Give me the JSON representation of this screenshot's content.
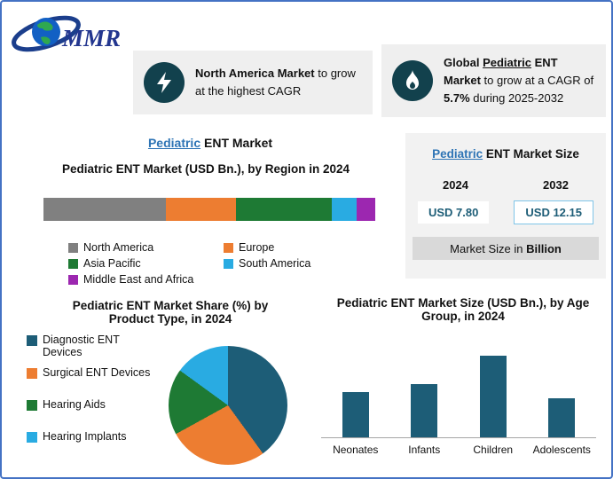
{
  "brand": {
    "logo_text": "MMR"
  },
  "callout_na": {
    "bold": "North America Market",
    "rest": " to grow at the highest CAGR"
  },
  "callout_global": {
    "seg1": "Global ",
    "seg2": "Pediatric",
    "seg3": " ENT Market",
    "seg4": " to grow at a CAGR of ",
    "seg5": "5.7%",
    "seg6": " during 2025-2032"
  },
  "region_section": {
    "title_lead": "Pediatric",
    "title_rest": " ENT Market",
    "subtitle": "Pediatric ENT Market (USD Bn.), by Region in 2024"
  },
  "market_size_panel": {
    "title_lead": "Pediatric",
    "title_rest": " ENT Market Size",
    "year_left": "2024",
    "year_right": "2032",
    "value_left": "USD 7.80",
    "value_right": "USD 12.15",
    "footnote_normal": "Market Size in ",
    "footnote_bold": "Billion"
  },
  "pie_section": {
    "title": "Pediatric ENT Market Share (%) by Product Type, in 2024"
  },
  "age_section": {
    "title": "Pediatric ENT Market Size (USD Bn.), by Age Group, in 2024"
  },
  "colors": {
    "border_blue": "#4472C4",
    "accent_blue": "#2E74B5",
    "teal": "#1D5D77",
    "icon_circle": "#12414D",
    "panel_gray": "#EFEFEF"
  },
  "chart_data": [
    {
      "type": "bar-stacked",
      "title": "Pediatric ENT Market (USD Bn.), by Region in 2024",
      "categories": [
        "North America",
        "Europe",
        "Asia Pacific",
        "South America",
        "Middle East and Africa"
      ],
      "values": [
        37,
        21,
        29,
        7.5,
        5.5
      ],
      "unit": "percent share of bar width (2024, estimated from segment lengths)",
      "colors": [
        "#808080",
        "#ED7D31",
        "#1E7A34",
        "#29ABE2",
        "#9C27B0"
      ],
      "legend_position": "below"
    },
    {
      "type": "pie",
      "title": "Pediatric ENT Market Share (%) by Product Type, in 2024",
      "categories": [
        "Diagnostic ENT Devices",
        "Surgical ENT Devices",
        "Hearing Aids",
        "Hearing Implants"
      ],
      "values": [
        40,
        27,
        18,
        15
      ],
      "unit": "percent (estimated from slice angles)",
      "colors": [
        "#1D5D77",
        "#ED7D31",
        "#1E7A34",
        "#29ABE2"
      ],
      "legend_position": "left"
    },
    {
      "type": "bar",
      "title": "Pediatric ENT Market Size (USD Bn.), by Age Group, in 2024",
      "categories": [
        "Neonates",
        "Infants",
        "Children",
        "Adolescents"
      ],
      "values": [
        1.6,
        1.9,
        2.9,
        1.4
      ],
      "ylabel": "USD Bn.",
      "unit": "USD Bn. (estimated from bar heights, no axis labels shown)",
      "color": "#1D5D77",
      "grid": false
    }
  ]
}
